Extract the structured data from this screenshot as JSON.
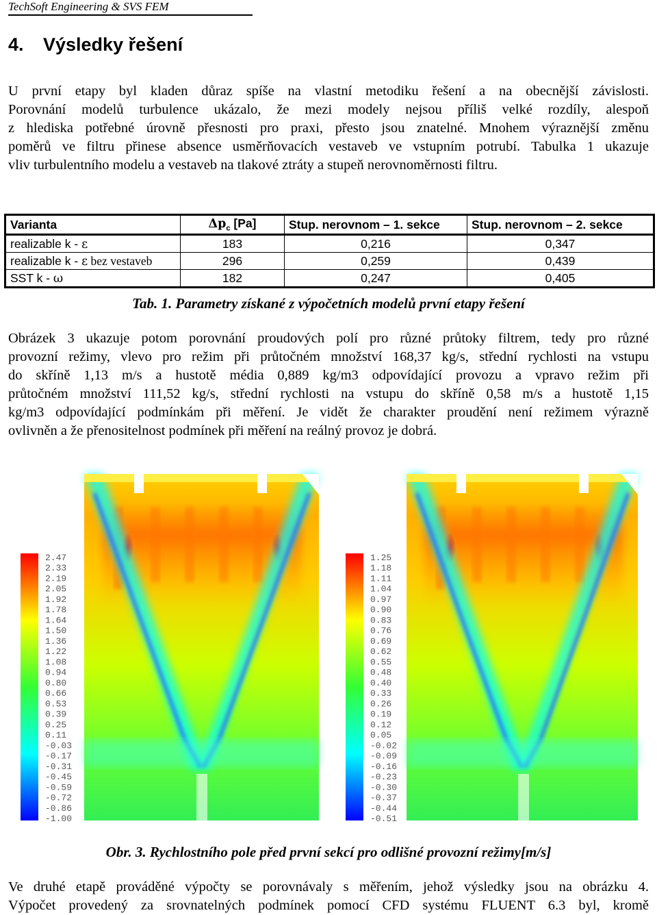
{
  "header": {
    "running_head": "TechSoft Engineering & SVS FEM"
  },
  "section": {
    "number": "4.",
    "title": "Výsledky řešení"
  },
  "paragraph1": [
    "U první etapy byl kladen důraz spíše na vlastní metodiku řešení a na obecnější závislosti.",
    "Porovnání modelů turbulence ukázalo, že mezi modely nejsou příliš velké rozdíly, alespoň",
    "z hlediska potřebné úrovně přesnosti pro praxi, přesto jsou znatelné. Mnohem výraznější změnu",
    "poměrů ve filtru přinese absence usměrňovacích vestaveb ve vstupním potrubí. Tabulka 1 ukazuje",
    "vliv turbulentního modelu a vestaveb na tlakové ztráty a stupeň nerovnoměrnosti filtru."
  ],
  "table": {
    "headers": [
      "Varianta",
      "Δpc [Pa]",
      "Stup. nerovnom – 1. sekce",
      "Stup. nerovnom – 2. sekce"
    ],
    "header_dp_symbol": "Δp",
    "header_dp_sub": "c",
    "header_dp_unit": " [Pa]",
    "rows": [
      {
        "variant_a": "realizable k - ",
        "variant_sym": "ε",
        "variant_b": "",
        "dp": "183",
        "s1": "0,216",
        "s2": "0,347"
      },
      {
        "variant_a": "realizable k - ",
        "variant_sym": "ε",
        "variant_b": " bez vestaveb",
        "dp": "296",
        "s1": "0,259",
        "s2": "0,439"
      },
      {
        "variant_a": "SST k - ",
        "variant_sym": "ω",
        "variant_b": "",
        "dp": "182",
        "s1": "0,247",
        "s2": "0,405"
      }
    ]
  },
  "table_caption": "Tab. 1. Parametry získané z výpočetních modelů první etapy řešení",
  "paragraph2": [
    "Obrázek 3 ukazuje potom porovnání proudových polí pro různé průtoky filtrem, tedy pro různé",
    "provozní režimy, vlevo pro režim při průtočném množství 168,37 kg/s, střední rychlosti na vstupu",
    "do skříně 1,13 m/s a hustotě média 0,889 kg/m3 odpovídající provozu a vpravo režim při",
    "průtočném množství 111,52 kg/s, střední rychlosti na vstupu do skříně 0,58 m/s a hustotě 1,15",
    "kg/m3 odpovídající podmínkám při měření. Je vidět že charakter proudění není režimem výrazně",
    "ovlivněn a že přenositelnost podmínek při měření na reálný provoz je dobrá."
  ],
  "figure": {
    "left_legend": [
      "2.47",
      "2.33",
      "2.19",
      "2.05",
      "1.92",
      "1.78",
      "1.64",
      "1.50",
      "1.36",
      "1.22",
      "1.08",
      "0.94",
      "0.80",
      "0.66",
      "0.53",
      "0.39",
      "0.25",
      "0.11",
      "-0.03",
      "-0.17",
      "-0.31",
      "-0.45",
      "-0.59",
      "-0.72",
      "-0.86",
      "-1.00"
    ],
    "right_legend": [
      "1.25",
      "1.18",
      "1.11",
      "1.04",
      "0.97",
      "0.90",
      "0.83",
      "0.76",
      "0.69",
      "0.62",
      "0.55",
      "0.48",
      "0.40",
      "0.33",
      "0.26",
      "0.19",
      "0.12",
      "0.05",
      "-0.02",
      "-0.09",
      "-0.16",
      "-0.23",
      "-0.30",
      "-0.37",
      "-0.44",
      "-0.51"
    ],
    "colors": {
      "red": "#ff0000",
      "yellow": "#ffff00",
      "green": "#33ff33",
      "cyan": "#00ffff",
      "blue": "#0000ff"
    }
  },
  "figure_caption": "Obr. 3. Rychlostního pole před první sekcí pro odlišné provozní režimy[m/s]",
  "paragraph3": [
    "Ve druhé etapě prováděné výpočty se porovnávaly s měřením, jehož výsledky jsou na obrázku 4.",
    "Výpočet provedený za srovnatelných podmínek pomocí CFD systému FLUENT 6.3 byl, kromě"
  ]
}
